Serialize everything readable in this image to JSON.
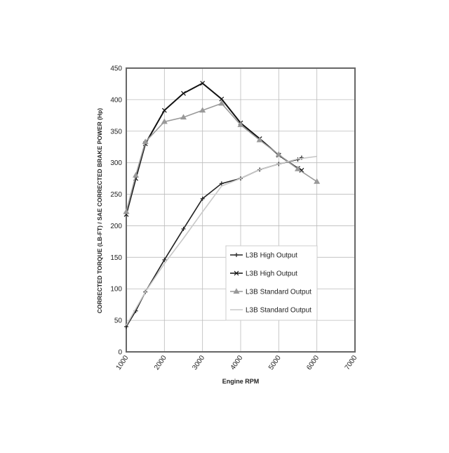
{
  "chart_data": {
    "type": "line",
    "x_label": "Engine RPM",
    "y_label": "CORRECTED TORQUE (LB-FT) / SAE CORRECTED BRAKE POWER (Hp)",
    "xlim": [
      1000,
      7000
    ],
    "xticks": [
      1000,
      2000,
      3000,
      4000,
      5000,
      6000,
      7000
    ],
    "ylim": [
      0,
      450
    ],
    "yticks": [
      0,
      50,
      100,
      150,
      200,
      250,
      300,
      350,
      400,
      450
    ],
    "grid": true,
    "legend": "lower right",
    "series": [
      {
        "name": "L3B High Output",
        "color": "#222222",
        "marker": "plus",
        "x": [
          1000,
          1250,
          1500,
          2000,
          2500,
          3000,
          3500,
          4000,
          4500,
          5000,
          5500,
          5600
        ],
        "values": [
          40,
          65,
          95,
          146,
          195,
          243,
          267,
          275,
          289,
          298,
          305,
          308
        ]
      },
      {
        "name": "L3B High Output",
        "color": "#111111",
        "marker": "x",
        "x": [
          1000,
          1250,
          1500,
          2000,
          2500,
          3000,
          3500,
          4000,
          4500,
          5000,
          5500,
          5600
        ],
        "values": [
          218,
          275,
          330,
          383,
          410,
          426,
          401,
          363,
          338,
          312,
          291,
          288
        ]
      },
      {
        "name": "L3B Standard Output",
        "color": "#999999",
        "marker": "triangle",
        "x": [
          1000,
          1250,
          1500,
          2000,
          2500,
          3000,
          3500,
          4000,
          4500,
          5000,
          5500,
          6000
        ],
        "values": [
          222,
          280,
          333,
          365,
          372,
          383,
          394,
          360,
          336,
          313,
          290,
          270
        ]
      },
      {
        "name": "L3B Standard Output",
        "color": "#c8c8c8",
        "marker": "none",
        "x": [
          1000,
          1500,
          2000,
          2500,
          3000,
          3500,
          4000,
          4500,
          5000,
          5500,
          6000
        ],
        "values": [
          42,
          95,
          140,
          180,
          222,
          263,
          275,
          289,
          298,
          306,
          310
        ]
      }
    ]
  }
}
